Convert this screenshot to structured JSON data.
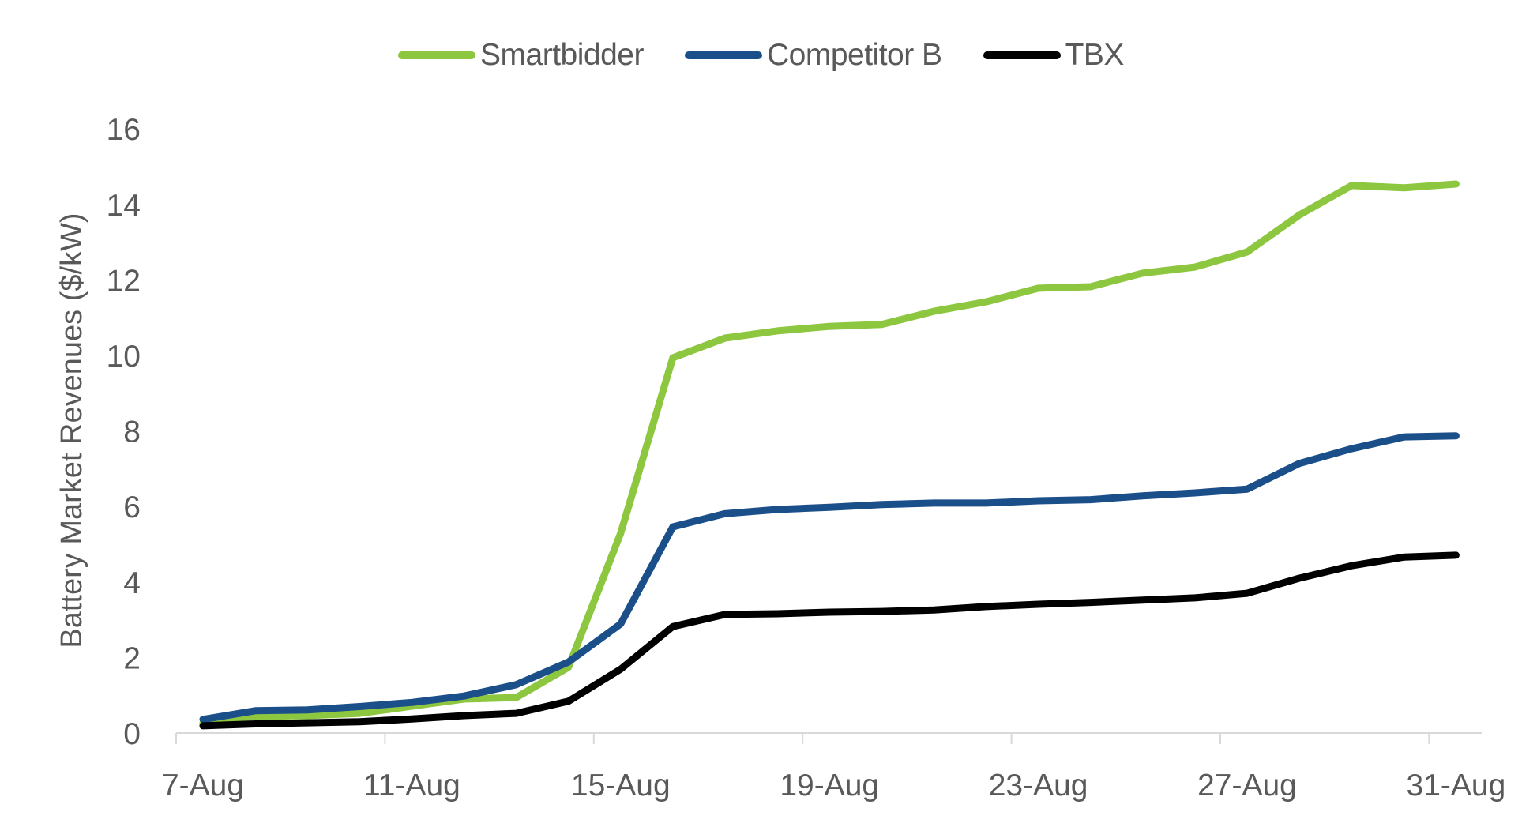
{
  "chart_data": {
    "type": "line",
    "title": "",
    "xlabel": "",
    "ylabel": "Battery Market Revenues ($/kW)",
    "ylim": [
      0,
      16
    ],
    "yticks": [
      0,
      2,
      4,
      6,
      8,
      10,
      12,
      14,
      16
    ],
    "grid": false,
    "legend_position": "top",
    "x": [
      "7-Aug",
      "8-Aug",
      "9-Aug",
      "10-Aug",
      "11-Aug",
      "12-Aug",
      "13-Aug",
      "14-Aug",
      "15-Aug",
      "16-Aug",
      "17-Aug",
      "18-Aug",
      "19-Aug",
      "20-Aug",
      "21-Aug",
      "22-Aug",
      "23-Aug",
      "24-Aug",
      "25-Aug",
      "26-Aug",
      "27-Aug",
      "28-Aug",
      "29-Aug",
      "30-Aug",
      "31-Aug"
    ],
    "xtick_labels": [
      "7-Aug",
      "11-Aug",
      "15-Aug",
      "19-Aug",
      "23-Aug",
      "27-Aug",
      "31-Aug"
    ],
    "series": [
      {
        "name": "Smartbidder",
        "color": "#8DC63F",
        "values": [
          0.27,
          0.44,
          0.46,
          0.52,
          0.71,
          0.9,
          0.94,
          1.74,
          5.29,
          9.94,
          10.46,
          10.65,
          10.77,
          10.82,
          11.17,
          11.42,
          11.78,
          11.82,
          12.18,
          12.34,
          12.74,
          13.72,
          14.5,
          14.44,
          14.54
        ]
      },
      {
        "name": "Competitor B",
        "color": "#1A4F8A",
        "values": [
          0.36,
          0.59,
          0.61,
          0.7,
          0.81,
          0.98,
          1.28,
          1.88,
          2.89,
          5.46,
          5.81,
          5.92,
          5.98,
          6.05,
          6.09,
          6.09,
          6.15,
          6.18,
          6.28,
          6.36,
          6.46,
          7.14,
          7.53,
          7.84,
          7.87
        ]
      },
      {
        "name": "TBX",
        "color": "#000000",
        "values": [
          0.19,
          0.24,
          0.27,
          0.3,
          0.37,
          0.46,
          0.52,
          0.84,
          1.69,
          2.82,
          3.14,
          3.16,
          3.2,
          3.22,
          3.26,
          3.35,
          3.41,
          3.46,
          3.52,
          3.58,
          3.7,
          4.1,
          4.43,
          4.66,
          4.71
        ]
      }
    ]
  },
  "legend": {
    "items": [
      {
        "label": "Smartbidder",
        "color": "#8DC63F"
      },
      {
        "label": "Competitor B",
        "color": "#1A4F8A"
      },
      {
        "label": "TBX",
        "color": "#000000"
      }
    ]
  },
  "axes": {
    "y_title": "Battery Market Revenues ($/kW)",
    "y_tick_labels": [
      "0",
      "2",
      "4",
      "6",
      "8",
      "10",
      "12",
      "14",
      "16"
    ],
    "x_tick_labels": [
      "7-Aug",
      "11-Aug",
      "15-Aug",
      "19-Aug",
      "23-Aug",
      "27-Aug",
      "31-Aug"
    ],
    "axis_color": "#D9D9D9",
    "text_color": "#595959"
  }
}
